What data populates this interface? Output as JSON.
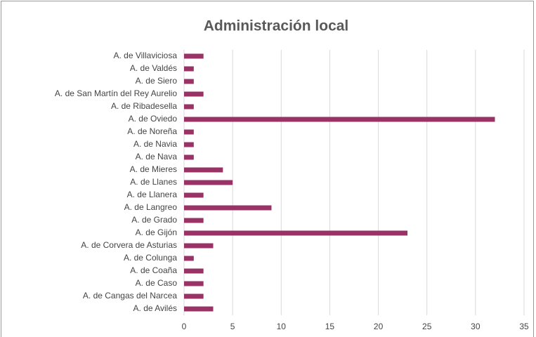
{
  "chart_data": {
    "type": "barh",
    "title": "Administración local",
    "categories": [
      "A. de Villaviciosa",
      "A. de Valdés",
      "A. de Siero",
      "A. de San Martín del Rey Aurelio",
      "A. de Ribadesella",
      "A. de Oviedo",
      "A. de Noreña",
      "A. de Navia",
      "A. de Nava",
      "A. de Mieres",
      "A. de Llanes",
      "A. de Llanera",
      "A. de Langreo",
      "A. de Grado",
      "A. de Gijón",
      "A. de Corvera de Asturias",
      "A. de Colunga",
      "A. de Coaña",
      "A. de Caso",
      "A. de Cangas del Narcea",
      "A. de Avilés"
    ],
    "values": [
      2,
      1,
      1,
      2,
      1,
      32,
      1,
      1,
      1,
      4,
      5,
      2,
      9,
      2,
      23,
      3,
      1,
      2,
      2,
      2,
      3
    ],
    "color": "#993366",
    "xlim": [
      0,
      35
    ],
    "xticks": [
      0,
      5,
      10,
      15,
      20,
      25,
      30,
      35
    ],
    "grid": true
  }
}
